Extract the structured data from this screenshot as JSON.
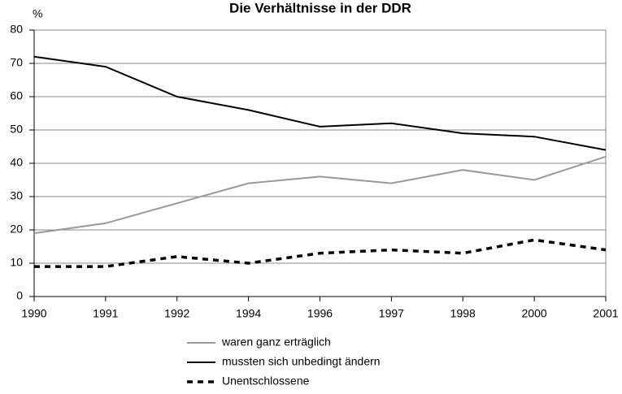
{
  "chart_data": {
    "type": "line",
    "title": "Die Verhältnisse in der DDR",
    "y_label": "%",
    "categories": [
      "1990",
      "1991",
      "1992",
      "1994",
      "1996",
      "1997",
      "1998",
      "2000",
      "2001"
    ],
    "series": [
      {
        "name": "waren ganz erträglich",
        "color": "#999999",
        "line_style": "solid",
        "values": [
          19,
          22,
          28,
          34,
          36,
          34,
          38,
          35,
          42
        ]
      },
      {
        "name": "mussten sich unbedingt ändern",
        "color": "#000000",
        "line_style": "solid",
        "values": [
          72,
          69,
          60,
          56,
          51,
          52,
          49,
          48,
          44
        ]
      },
      {
        "name": "Unentschlossene",
        "color": "#000000",
        "line_style": "dashed",
        "values": [
          9,
          9,
          12,
          10,
          13,
          14,
          13,
          17,
          14
        ]
      }
    ],
    "ylim": [
      0,
      80
    ],
    "yticks": [
      0,
      10,
      20,
      30,
      40,
      50,
      60,
      70,
      80
    ],
    "grid": true,
    "legend": "bottom"
  }
}
